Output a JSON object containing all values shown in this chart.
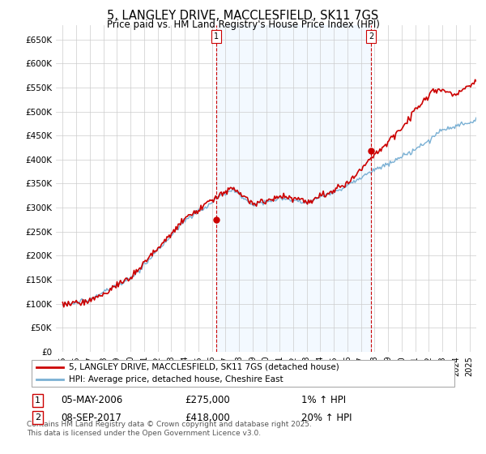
{
  "title": "5, LANGLEY DRIVE, MACCLESFIELD, SK11 7GS",
  "subtitle": "Price paid vs. HM Land Registry's House Price Index (HPI)",
  "legend_line1": "5, LANGLEY DRIVE, MACCLESFIELD, SK11 7GS (detached house)",
  "legend_line2": "HPI: Average price, detached house, Cheshire East",
  "footnote": "Contains HM Land Registry data © Crown copyright and database right 2025.\nThis data is licensed under the Open Government Licence v3.0.",
  "annotation1": {
    "label": "1",
    "date": "05-MAY-2006",
    "price": "£275,000",
    "change": "1% ↑ HPI"
  },
  "annotation2": {
    "label": "2",
    "date": "08-SEP-2017",
    "price": "£418,000",
    "change": "20% ↑ HPI"
  },
  "house_color": "#cc0000",
  "hpi_color": "#7ab0d4",
  "shade_color": "#ddeeff",
  "grid_color": "#cccccc",
  "background_color": "#ffffff",
  "ylim": [
    0,
    680000
  ],
  "yticks": [
    0,
    50000,
    100000,
    150000,
    200000,
    250000,
    300000,
    350000,
    400000,
    450000,
    500000,
    550000,
    600000,
    650000
  ],
  "xlim_start": 1994.5,
  "xlim_end": 2025.5,
  "ann1_x": 2006.35,
  "ann2_x": 2017.75,
  "ann1_price": 275000,
  "ann2_price": 418000
}
